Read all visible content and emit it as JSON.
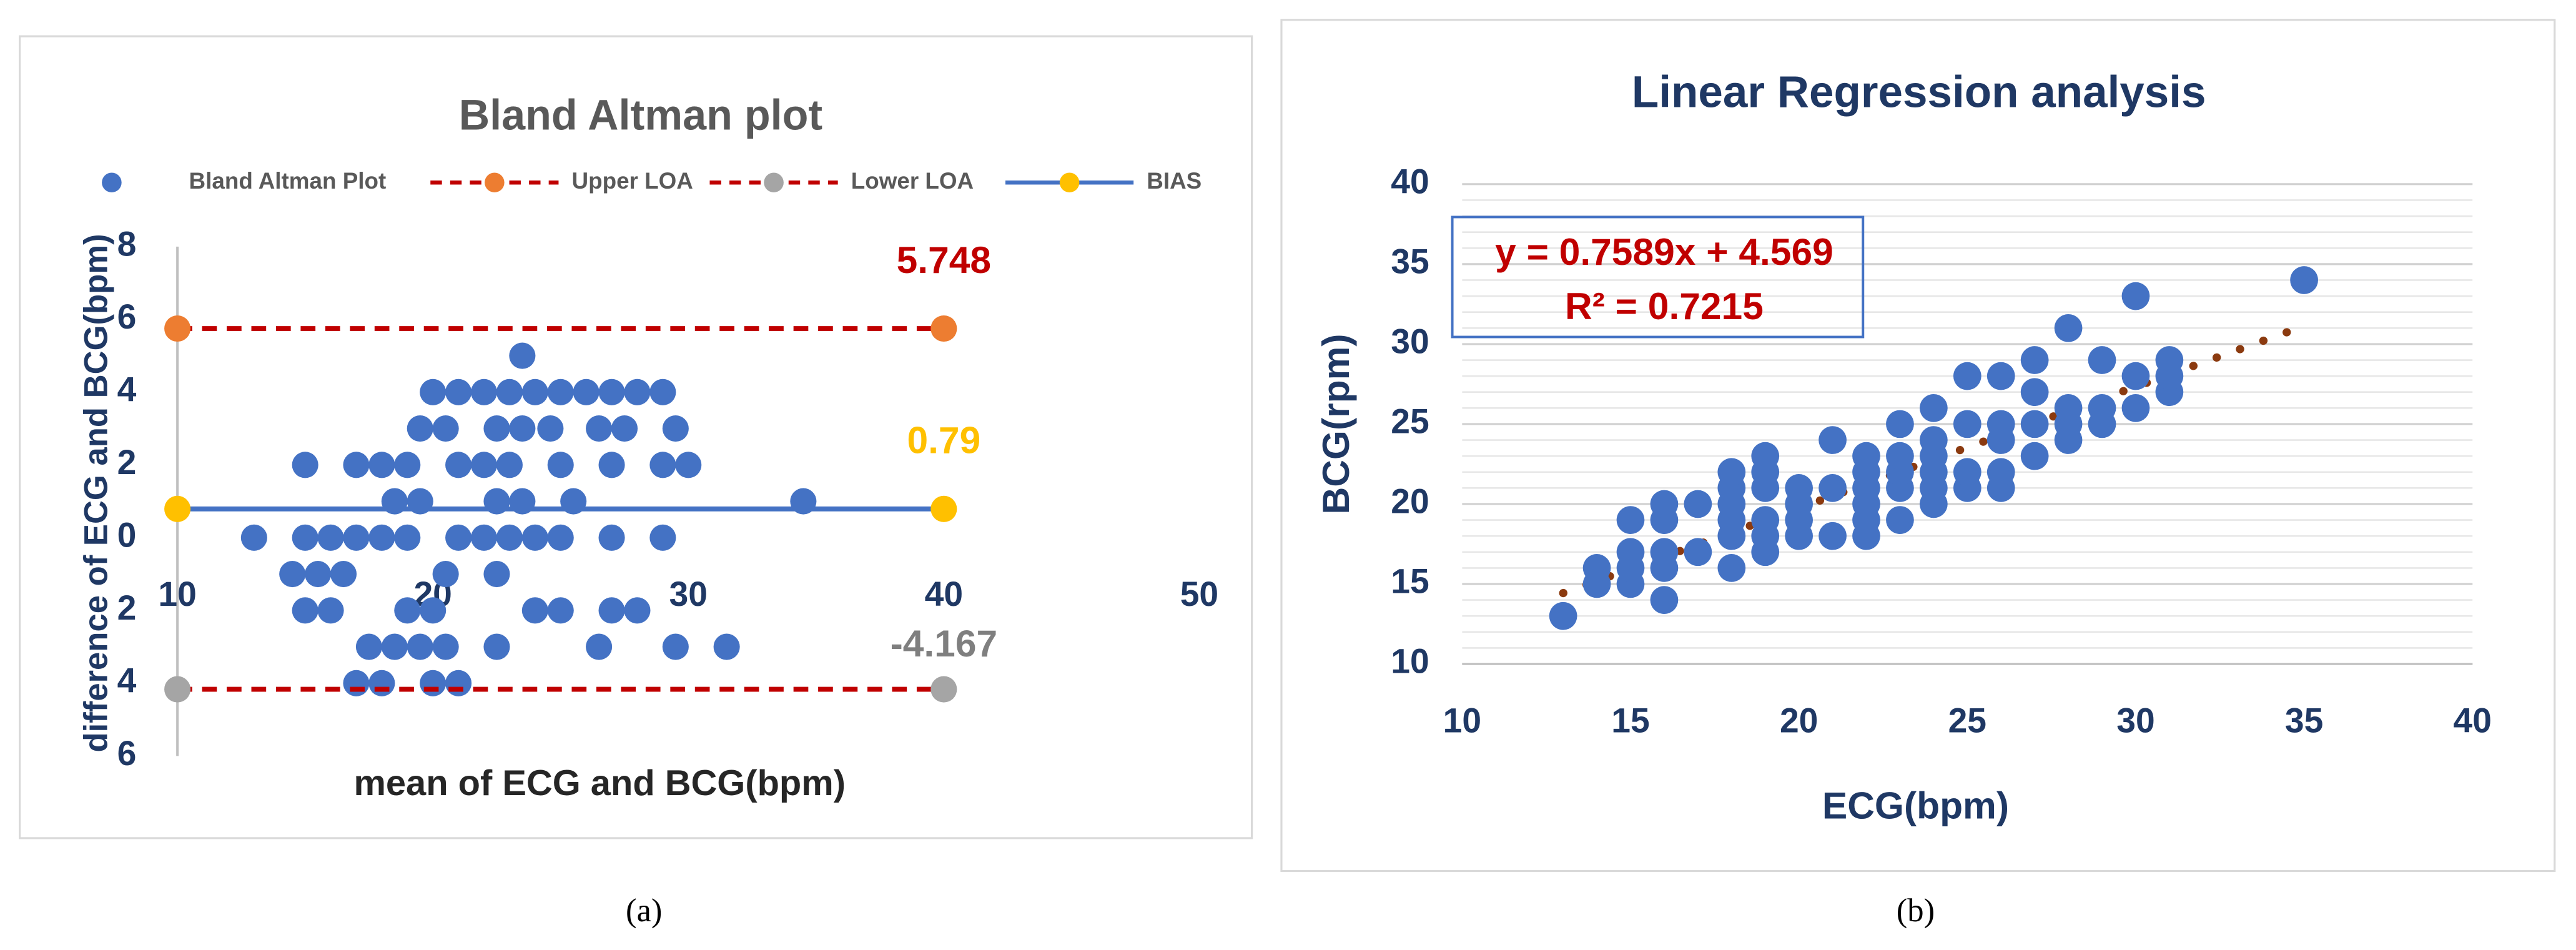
{
  "chart_data": [
    {
      "type": "scatter",
      "title": "Bland Altman plot",
      "xlabel": "mean of ECG and BCG(bpm)",
      "ylabel": "difference of ECG and BCG(bpm)",
      "caption": "(a)",
      "xlim": [
        10,
        50
      ],
      "xticks": [
        10,
        20,
        30,
        40,
        50
      ],
      "ylim": [
        -6,
        8
      ],
      "yticks": [
        {
          "value": -6,
          "label": "6"
        },
        {
          "value": -4,
          "label": "4"
        },
        {
          "value": -2,
          "label": "2"
        },
        0,
        2,
        4,
        6,
        8
      ],
      "legend": "top",
      "series": [
        {
          "name": "Bland Altman Plot",
          "color": "#4472c4",
          "x": [
            23.5,
            20,
            21,
            22,
            23,
            24,
            25,
            26,
            27,
            28,
            29,
            19.5,
            20.5,
            22.5,
            23.5,
            24.6,
            26.5,
            27.5,
            29.5,
            15,
            17,
            18,
            19,
            21,
            22,
            23,
            25,
            27,
            29,
            30,
            18.5,
            19.5,
            22.5,
            23.5,
            25.5,
            34.5,
            13,
            15,
            16,
            17,
            18,
            19,
            21,
            22,
            23,
            24,
            25,
            27,
            29,
            14.5,
            15.5,
            16.5,
            20.5,
            22.5,
            15,
            16,
            19,
            20,
            24,
            25,
            27,
            28,
            17.5,
            18.5,
            19.5,
            20.5,
            22.5,
            26.5,
            29.5,
            31.5,
            17,
            18,
            20,
            21
          ],
          "values": [
            5,
            4,
            4,
            4,
            4,
            4,
            4,
            4,
            4,
            4,
            4,
            3,
            3,
            3,
            3,
            3,
            3,
            3,
            3,
            2,
            2,
            2,
            2,
            2,
            2,
            2,
            2,
            2,
            2,
            2,
            1,
            1,
            1,
            1,
            1,
            1,
            0,
            0,
            0,
            0,
            0,
            0,
            0,
            0,
            0,
            0,
            0,
            0,
            0,
            -1,
            -1,
            -1,
            -1,
            -1,
            -2,
            -2,
            -2,
            -2,
            -2,
            -2,
            -2,
            -2,
            -3,
            -3,
            -3,
            -3,
            -3,
            -3,
            -3,
            -3,
            -4,
            -4,
            -4,
            -4
          ]
        },
        {
          "name": "Upper LOA",
          "color": "#ed7d31",
          "line_color": "#c00000",
          "line_style": "dashed",
          "label_color": "#c00000",
          "x": [
            10,
            40
          ],
          "values": [
            5.748,
            5.748
          ]
        },
        {
          "name": "Lower LOA",
          "color": "#a5a5a5",
          "line_color": "#c00000",
          "line_style": "dashed",
          "label_color": "#7f7f7f",
          "x": [
            10,
            40
          ],
          "values": [
            -4.167,
            -4.167
          ]
        },
        {
          "name": "BIAS",
          "color": "#ffc000",
          "line_color": "#4472c4",
          "line_style": "solid",
          "label_color": "#ffc000",
          "x": [
            10,
            40
          ],
          "values": [
            0.79,
            0.79
          ]
        }
      ]
    },
    {
      "type": "scatter",
      "title": "Linear Regression analysis",
      "xlabel": "ECG(bpm)",
      "ylabel": "BCG(rpm)",
      "caption": "(b)",
      "xlim": [
        10,
        40
      ],
      "xticks": [
        10,
        15,
        20,
        25,
        30,
        35,
        40
      ],
      "ylim": [
        10,
        40
      ],
      "yticks": [
        10,
        15,
        20,
        25,
        30,
        35,
        40
      ],
      "grid": true,
      "minor_step": 1,
      "series": [
        {
          "color": "#4472c4",
          "x": [
            13,
            14,
            14,
            15,
            15,
            15,
            15,
            16,
            16,
            16,
            16,
            16,
            17,
            17,
            18,
            18,
            18,
            18,
            18,
            18,
            19,
            19,
            19,
            19,
            19,
            19,
            20,
            20,
            20,
            20,
            21,
            21,
            21,
            22,
            22,
            22,
            22,
            22,
            22,
            23,
            23,
            23,
            23,
            23,
            24,
            24,
            24,
            24,
            24,
            24,
            25,
            25,
            25,
            25,
            26,
            26,
            26,
            26,
            26,
            27,
            27,
            27,
            27,
            28,
            28,
            28,
            28,
            29,
            29,
            29,
            30,
            30,
            30,
            31,
            31,
            31,
            35
          ],
          "values": [
            13,
            15,
            16,
            15,
            16,
            17,
            19,
            14,
            16,
            17,
            19,
            20,
            17,
            20,
            16,
            18,
            19,
            20,
            21,
            22,
            17,
            18,
            19,
            21,
            22,
            23,
            18,
            19,
            20,
            21,
            18,
            21,
            24,
            18,
            19,
            20,
            21,
            22,
            23,
            19,
            21,
            22,
            23,
            25,
            20,
            21,
            22,
            23,
            24,
            26,
            21,
            22,
            25,
            28,
            21,
            22,
            24,
            25,
            28,
            23,
            25,
            27,
            29,
            24,
            25,
            26,
            31,
            25,
            26,
            29,
            26,
            28,
            33,
            27,
            28,
            29,
            34
          ]
        }
      ],
      "trendline": {
        "color": "#8b3a0f",
        "x": [
          13,
          34.5
        ],
        "values": [
          14.43,
          30.75
        ],
        "equation": "y = 0.7589x + 4.569",
        "r2": "R² = 0.7215"
      }
    }
  ]
}
